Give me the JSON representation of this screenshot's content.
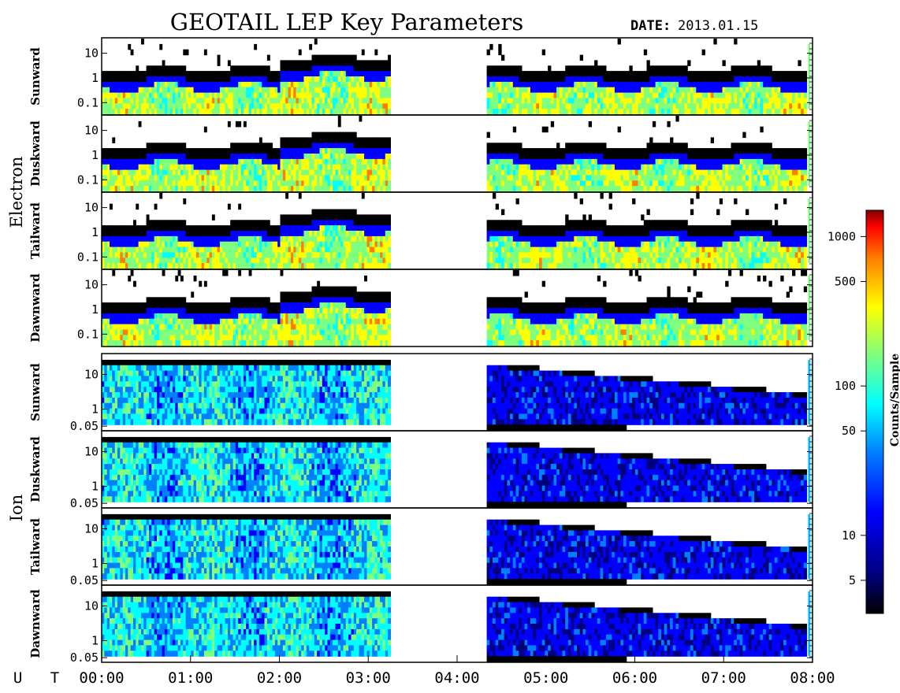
{
  "title": "GEOTAIL LEP Key Parameters",
  "date_label": "DATE:",
  "date_value": "2013.01.15",
  "time_axis_label": "U T",
  "colorbar": {
    "label": "Counts/Sample",
    "ticks": [
      "1000",
      "500",
      "100",
      "50",
      "10",
      "5"
    ],
    "scale": "log",
    "range": [
      3,
      1500
    ]
  },
  "colors": {
    "background": "#ffffff",
    "axes": "#000000",
    "colormap": [
      "#000000",
      "#00007f",
      "#0000ff",
      "#007fff",
      "#00ffff",
      "#7fff7f",
      "#ffff00",
      "#ff7f00",
      "#ff0000",
      "#7f0000"
    ]
  },
  "chart_data": {
    "type": "heatmap",
    "x_axis": {
      "label": "U T",
      "range": [
        "00:00",
        "08:00"
      ],
      "ticks": [
        "00:00",
        "01:00",
        "02:00",
        "03:00",
        "04:00",
        "05:00",
        "06:00",
        "07:00",
        "08:00"
      ]
    },
    "data_gap": [
      "03:15",
      "04:20"
    ],
    "groups": [
      {
        "name": "Electron",
        "y_ticks": [
          "10",
          "1",
          "0.1"
        ],
        "panels": [
          {
            "direction": "Sunward"
          },
          {
            "direction": "Duskward"
          },
          {
            "direction": "Tailward"
          },
          {
            "direction": "Dawnward"
          }
        ]
      },
      {
        "name": "Ion",
        "y_ticks": [
          "10",
          "1",
          "0.05"
        ],
        "panels": [
          {
            "direction": "Sunward"
          },
          {
            "direction": "Duskward"
          },
          {
            "direction": "Tailward"
          },
          {
            "direction": "Dawnward"
          }
        ]
      }
    ]
  }
}
